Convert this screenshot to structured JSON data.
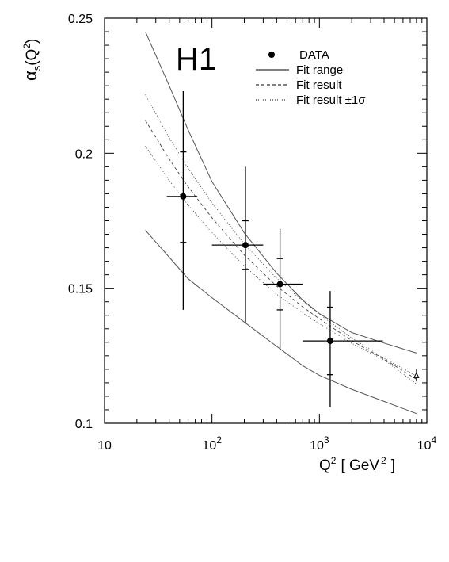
{
  "chart_data": {
    "type": "line",
    "experiment_label": "H1",
    "xlabel_main": "Q",
    "xlabel_sup": "2",
    "xlabel_units": "[ GeV",
    "xlabel_units_sup": "2",
    "xlabel_close": "]",
    "ylabel_main": "α",
    "ylabel_sub": "s",
    "ylabel_arg_open": "(Q",
    "ylabel_arg_sup": "2",
    "ylabel_arg_close": ")",
    "x_scale": "log",
    "xlim": [
      10,
      10000
    ],
    "ylim": [
      0.1,
      0.25
    ],
    "x_ticks": [
      {
        "value": 10,
        "base": "10",
        "exp": ""
      },
      {
        "value": 100,
        "base": "10",
        "exp": "2"
      },
      {
        "value": 1000,
        "base": "10",
        "exp": "3"
      },
      {
        "value": 10000,
        "base": "10",
        "exp": "4"
      }
    ],
    "y_ticks": [
      {
        "value": 0.1,
        "label": "0.1"
      },
      {
        "value": 0.15,
        "label": "0.15"
      },
      {
        "value": 0.2,
        "label": "0.2"
      },
      {
        "value": 0.25,
        "label": "0.25"
      }
    ],
    "legend": [
      {
        "label": "DATA",
        "style": "marker"
      },
      {
        "label": "Fit range",
        "style": "solid"
      },
      {
        "label": "Fit result",
        "style": "dashed"
      },
      {
        "label": "Fit result ±1σ",
        "style": "dotted"
      }
    ],
    "data_points": [
      {
        "x": 54,
        "y": 0.184,
        "xlow": 38,
        "xhigh": 73,
        "stat_low": 0.167,
        "stat_high": 0.2005,
        "tot_low": 0.142,
        "tot_high": 0.223
      },
      {
        "x": 205,
        "y": 0.166,
        "xlow": 100,
        "xhigh": 300,
        "stat_low": 0.157,
        "stat_high": 0.175,
        "tot_low": 0.137,
        "tot_high": 0.195
      },
      {
        "x": 430,
        "y": 0.1515,
        "xlow": 300,
        "xhigh": 700,
        "stat_low": 0.142,
        "stat_high": 0.161,
        "tot_low": 0.127,
        "tot_high": 0.172
      },
      {
        "x": 1260,
        "y": 0.1305,
        "xlow": 700,
        "xhigh": 3900,
        "stat_low": 0.118,
        "stat_high": 0.143,
        "tot_low": 0.106,
        "tot_high": 0.149
      }
    ],
    "extra_marker": {
      "x": 8000,
      "y": 0.1178,
      "low": 0.1155,
      "high": 0.12
    },
    "series": [
      {
        "style": "solid",
        "x": [
          24,
          40,
          60,
          100,
          200,
          400,
          700,
          1000,
          2000,
          4000,
          8000
        ],
        "values": [
          0.245,
          0.225,
          0.2086,
          0.1895,
          0.1705,
          0.1556,
          0.1456,
          0.1406,
          0.1336,
          0.1297,
          0.126
        ]
      },
      {
        "style": "dotted",
        "x": [
          24,
          40,
          60,
          100,
          200,
          400,
          700,
          1000,
          2000,
          4000,
          8000
        ],
        "values": [
          0.2217,
          0.2057,
          0.1944,
          0.1816,
          0.1664,
          0.1537,
          0.1453,
          0.1404,
          0.1316,
          0.1241,
          0.1175
        ]
      },
      {
        "style": "dashed",
        "x": [
          24,
          40,
          60,
          100,
          200,
          400,
          700,
          1000,
          2000,
          4000,
          8000
        ],
        "values": [
          0.2122,
          0.1978,
          0.1876,
          0.1761,
          0.1623,
          0.1508,
          0.1431,
          0.1387,
          0.1306,
          0.1238,
          0.1163
        ]
      },
      {
        "style": "dotted",
        "x": [
          24,
          40,
          60,
          100,
          200,
          400,
          700,
          1000,
          2000,
          4000,
          8000
        ],
        "values": [
          0.2027,
          0.1899,
          0.1808,
          0.1706,
          0.1582,
          0.1478,
          0.1409,
          0.1369,
          0.1296,
          0.1235,
          0.1146
        ]
      },
      {
        "style": "solid",
        "x": [
          24,
          40,
          60,
          100,
          200,
          400,
          700,
          1000,
          2000,
          4000,
          8000
        ],
        "values": [
          0.1715,
          0.1615,
          0.1535,
          0.1465,
          0.1375,
          0.1285,
          0.1213,
          0.1178,
          0.1126,
          0.1081,
          0.1036
        ]
      }
    ]
  }
}
